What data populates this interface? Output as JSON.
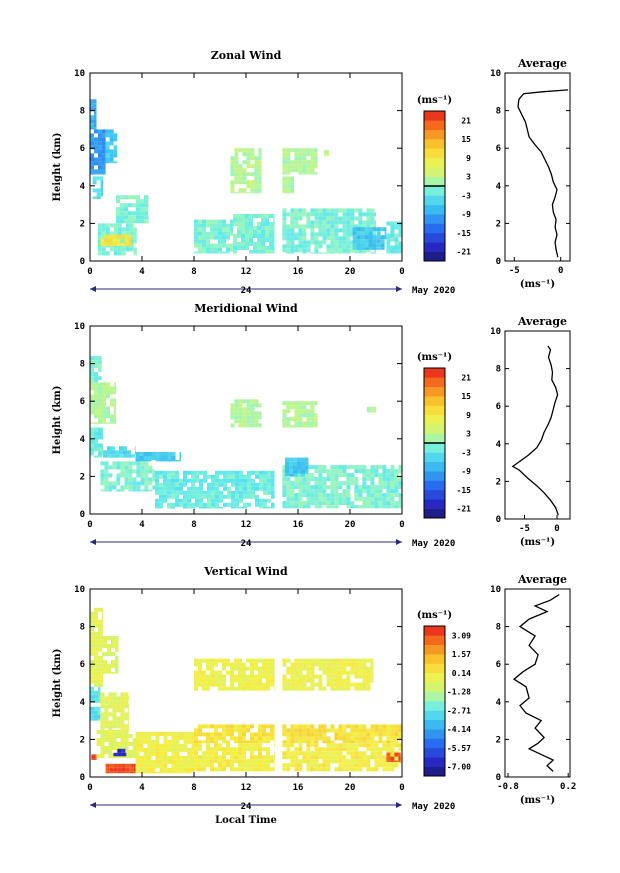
{
  "figure": {
    "date_label": "May 2020",
    "midnight_label": "24",
    "x_axis_label": "Local Time",
    "unit_label": "(ms⁻¹)",
    "y_axis_label": "Height (km)",
    "average_title": "Average"
  },
  "chart_data": [
    {
      "type": "heatmap",
      "title": "Zonal Wind",
      "xlabel": "",
      "ylabel": "Height (km)",
      "x_ticks": [
        "0",
        "4",
        "8",
        "12",
        "16",
        "20",
        "0"
      ],
      "y_ticks": [
        "0",
        "2",
        "4",
        "6",
        "8",
        "10"
      ],
      "xlim": [
        0,
        24
      ],
      "ylim": [
        0,
        10
      ],
      "colorbar": {
        "unit": "(ms⁻¹)",
        "labels": [
          "21",
          "15",
          "9",
          "3",
          "-3",
          "-9",
          "-15",
          "-21"
        ],
        "range": [
          -24,
          24
        ],
        "contour_at": 0
      },
      "blocks": [
        {
          "x": [
            0,
            1.2
          ],
          "y": [
            4.6,
            7.0
          ],
          "v": -10
        },
        {
          "x": [
            0,
            0.5
          ],
          "y": [
            7.0,
            8.6
          ],
          "v": -8
        },
        {
          "x": [
            1.2,
            2.1
          ],
          "y": [
            5.2,
            7.0
          ],
          "v": -6
        },
        {
          "x": [
            0.2,
            1.0
          ],
          "y": [
            3.3,
            4.5
          ],
          "v": -4
        },
        {
          "x": [
            2.0,
            4.5
          ],
          "y": [
            2.0,
            3.5
          ],
          "v": -1
        },
        {
          "x": [
            0.6,
            3.6
          ],
          "y": [
            0.3,
            2.0
          ],
          "v": -1
        },
        {
          "x": [
            0.8,
            3.2
          ],
          "y": [
            0.8,
            1.4
          ],
          "v": 10
        },
        {
          "x": [
            8.0,
            11.0
          ],
          "y": [
            0.4,
            2.2
          ],
          "v": -1
        },
        {
          "x": [
            11.0,
            14.2
          ],
          "y": [
            0.4,
            2.5
          ],
          "v": -1
        },
        {
          "x": [
            14.8,
            22.0
          ],
          "y": [
            0.4,
            2.8
          ],
          "v": -1
        },
        {
          "x": [
            20.2,
            22.8
          ],
          "y": [
            0.6,
            1.8
          ],
          "v": -6
        },
        {
          "x": [
            22.8,
            24.0
          ],
          "y": [
            0.4,
            2.1
          ],
          "v": -2
        },
        {
          "x": [
            10.8,
            13.2
          ],
          "y": [
            3.6,
            6.0
          ],
          "v": 2
        },
        {
          "x": [
            14.8,
            17.5
          ],
          "y": [
            4.6,
            6.0
          ],
          "v": 2
        },
        {
          "x": [
            18.0,
            18.4
          ],
          "y": [
            5.6,
            5.9
          ],
          "v": 2
        },
        {
          "x": [
            14.8,
            15.7
          ],
          "y": [
            3.6,
            4.5
          ],
          "v": 2
        }
      ],
      "average": {
        "title": "Average",
        "xlim": [
          -6,
          1
        ],
        "x_ticks": [
          {
            "v": -5,
            "t": "-5"
          },
          {
            "v": 0,
            "t": "0"
          }
        ],
        "x_unit": "(ms⁻¹)",
        "ylim": [
          0,
          10
        ],
        "y_ticks": [
          "0",
          "2",
          "4",
          "6",
          "8",
          "10"
        ],
        "profile": [
          {
            "h": 0.2,
            "v": -0.3
          },
          {
            "h": 0.6,
            "v": -0.5
          },
          {
            "h": 1.0,
            "v": -0.6
          },
          {
            "h": 1.4,
            "v": -0.4
          },
          {
            "h": 1.8,
            "v": -0.6
          },
          {
            "h": 2.2,
            "v": -0.5
          },
          {
            "h": 2.6,
            "v": -0.8
          },
          {
            "h": 3.0,
            "v": -0.9
          },
          {
            "h": 3.4,
            "v": -0.6
          },
          {
            "h": 3.8,
            "v": -0.4
          },
          {
            "h": 4.2,
            "v": -0.8
          },
          {
            "h": 4.6,
            "v": -1.0
          },
          {
            "h": 5.0,
            "v": -1.3
          },
          {
            "h": 5.4,
            "v": -1.7
          },
          {
            "h": 5.8,
            "v": -2.1
          },
          {
            "h": 6.2,
            "v": -2.8
          },
          {
            "h": 6.6,
            "v": -3.4
          },
          {
            "h": 7.0,
            "v": -3.6
          },
          {
            "h": 7.4,
            "v": -3.8
          },
          {
            "h": 7.8,
            "v": -4.2
          },
          {
            "h": 8.2,
            "v": -4.6
          },
          {
            "h": 8.6,
            "v": -4.5
          },
          {
            "h": 8.9,
            "v": -4.0
          },
          {
            "h": 9.0,
            "v": -2.0
          },
          {
            "h": 9.1,
            "v": 0.8
          }
        ]
      }
    },
    {
      "type": "heatmap",
      "title": "Meridional Wind",
      "xlabel": "",
      "ylabel": "Height (km)",
      "x_ticks": [
        "0",
        "4",
        "8",
        "12",
        "16",
        "20",
        "0"
      ],
      "y_ticks": [
        "0",
        "2",
        "4",
        "6",
        "8",
        "10"
      ],
      "xlim": [
        0,
        24
      ],
      "ylim": [
        0,
        10
      ],
      "colorbar": {
        "unit": "(ms⁻¹)",
        "labels": [
          "21",
          "15",
          "9",
          "3",
          "-3",
          "-9",
          "-15",
          "-21"
        ],
        "range": [
          -24,
          24
        ],
        "contour_at": 0
      },
      "blocks": [
        {
          "x": [
            0,
            2.0
          ],
          "y": [
            4.8,
            7.0
          ],
          "v": 2
        },
        {
          "x": [
            0,
            0.9
          ],
          "y": [
            7.0,
            8.4
          ],
          "v": -1
        },
        {
          "x": [
            0,
            1.0
          ],
          "y": [
            3.0,
            4.6
          ],
          "v": -2
        },
        {
          "x": [
            1.0,
            3.5
          ],
          "y": [
            3.0,
            3.6
          ],
          "v": -4
        },
        {
          "x": [
            3.5,
            7.0
          ],
          "y": [
            2.8,
            3.3
          ],
          "v": -6
        },
        {
          "x": [
            0.8,
            5.0
          ],
          "y": [
            1.2,
            2.8
          ],
          "v": -1
        },
        {
          "x": [
            5.0,
            14.2
          ],
          "y": [
            0.3,
            2.3
          ],
          "v": -2
        },
        {
          "x": [
            14.8,
            24.0
          ],
          "y": [
            0.3,
            2.6
          ],
          "v": -1
        },
        {
          "x": [
            15.0,
            16.8
          ],
          "y": [
            2.0,
            3.0
          ],
          "v": -6
        },
        {
          "x": [
            10.8,
            13.2
          ],
          "y": [
            4.6,
            6.1
          ],
          "v": 2
        },
        {
          "x": [
            14.8,
            17.5
          ],
          "y": [
            4.6,
            6.0
          ],
          "v": 2
        },
        {
          "x": [
            21.3,
            22.0
          ],
          "y": [
            5.4,
            5.7
          ],
          "v": 2
        }
      ],
      "average": {
        "title": "Average",
        "xlim": [
          -8,
          2
        ],
        "x_ticks": [
          {
            "v": -5,
            "t": "-5"
          },
          {
            "v": 0,
            "t": "0"
          }
        ],
        "x_unit": "(ms⁻¹)",
        "ylim": [
          0,
          10
        ],
        "y_ticks": [
          "0",
          "2",
          "4",
          "6",
          "8",
          "10"
        ],
        "profile": [
          {
            "h": 0.2,
            "v": 0.2
          },
          {
            "h": 0.6,
            "v": -0.2
          },
          {
            "h": 1.0,
            "v": -1.0
          },
          {
            "h": 1.4,
            "v": -2.0
          },
          {
            "h": 1.8,
            "v": -3.2
          },
          {
            "h": 2.2,
            "v": -4.6
          },
          {
            "h": 2.6,
            "v": -5.8
          },
          {
            "h": 2.8,
            "v": -6.8
          },
          {
            "h": 3.0,
            "v": -6.0
          },
          {
            "h": 3.4,
            "v": -4.4
          },
          {
            "h": 3.8,
            "v": -3.1
          },
          {
            "h": 4.2,
            "v": -2.4
          },
          {
            "h": 4.6,
            "v": -2.0
          },
          {
            "h": 5.0,
            "v": -1.4
          },
          {
            "h": 5.4,
            "v": -0.9
          },
          {
            "h": 5.8,
            "v": -0.6
          },
          {
            "h": 6.2,
            "v": -0.3
          },
          {
            "h": 6.6,
            "v": 0.1
          },
          {
            "h": 7.0,
            "v": -0.2
          },
          {
            "h": 7.4,
            "v": -0.8
          },
          {
            "h": 7.8,
            "v": -0.7
          },
          {
            "h": 8.2,
            "v": -0.9
          },
          {
            "h": 8.6,
            "v": -1.3
          },
          {
            "h": 9.0,
            "v": -1.0
          },
          {
            "h": 9.2,
            "v": -1.4
          }
        ]
      }
    },
    {
      "type": "heatmap",
      "title": "Vertical Wind",
      "xlabel": "Local Time",
      "ylabel": "Height (km)",
      "x_ticks": [
        "0",
        "4",
        "8",
        "12",
        "16",
        "20",
        "0"
      ],
      "y_ticks": [
        "0",
        "2",
        "4",
        "6",
        "8",
        "10"
      ],
      "xlim": [
        0,
        24
      ],
      "ylim": [
        0,
        10
      ],
      "colorbar": {
        "unit": "(ms⁻¹)",
        "labels": [
          "3.09",
          "1.57",
          "0.14",
          "-1.28",
          "-2.71",
          "-4.14",
          "-5.57",
          "-7.00"
        ],
        "range": [
          -7.71,
          3.8
        ],
        "contour_at": null
      },
      "blocks": [
        {
          "x": [
            0,
            1.0
          ],
          "y": [
            4.8,
            9.0
          ],
          "v": -0.4
        },
        {
          "x": [
            1.0,
            2.2
          ],
          "y": [
            5.5,
            7.5
          ],
          "v": -0.6
        },
        {
          "x": [
            0,
            0.8
          ],
          "y": [
            3.0,
            4.8
          ],
          "v": -2.8
        },
        {
          "x": [
            0.8,
            3.0
          ],
          "y": [
            2.5,
            4.5
          ],
          "v": -0.5
        },
        {
          "x": [
            0.5,
            3.5
          ],
          "y": [
            1.0,
            2.5
          ],
          "v": -0.4
        },
        {
          "x": [
            3.5,
            8.0
          ],
          "y": [
            0.2,
            2.4
          ],
          "v": 0.0
        },
        {
          "x": [
            8.0,
            14.2
          ],
          "y": [
            1.8,
            2.8
          ],
          "v": 0.4
        },
        {
          "x": [
            8.0,
            14.2
          ],
          "y": [
            0.3,
            1.8
          ],
          "v": 0.1
        },
        {
          "x": [
            14.8,
            24.0
          ],
          "y": [
            1.8,
            2.8
          ],
          "v": 0.5
        },
        {
          "x": [
            14.8,
            24.0
          ],
          "y": [
            0.3,
            1.8
          ],
          "v": 0.1
        },
        {
          "x": [
            8.0,
            14.2
          ],
          "y": [
            4.6,
            6.3
          ],
          "v": -0.1
        },
        {
          "x": [
            14.8,
            21.8
          ],
          "y": [
            4.6,
            6.3
          ],
          "v": -0.1
        },
        {
          "x": [
            1.8,
            2.8
          ],
          "y": [
            1.1,
            1.5
          ],
          "v": -6.6
        },
        {
          "x": [
            0.1,
            0.5
          ],
          "y": [
            0.9,
            1.2
          ],
          "v": 3.4
        },
        {
          "x": [
            1.2,
            3.5
          ],
          "y": [
            0.2,
            0.7
          ],
          "v": 3.2
        },
        {
          "x": [
            22.8,
            23.9
          ],
          "y": [
            0.8,
            1.3
          ],
          "v": 3.1
        }
      ],
      "average": {
        "title": "Average",
        "xlim": [
          -0.85,
          0.23
        ],
        "x_ticks": [
          {
            "v": -0.8,
            "t": "-0.8"
          },
          {
            "v": 0.2,
            "t": "0.2"
          }
        ],
        "x_unit": "(ms⁻¹)",
        "ylim": [
          0,
          10
        ],
        "y_ticks": [
          "0",
          "2",
          "4",
          "6",
          "8",
          "10"
        ],
        "profile": [
          {
            "h": 0.3,
            "v": -0.05
          },
          {
            "h": 0.6,
            "v": -0.15
          },
          {
            "h": 0.9,
            "v": -0.05
          },
          {
            "h": 1.2,
            "v": -0.25
          },
          {
            "h": 1.5,
            "v": -0.45
          },
          {
            "h": 1.8,
            "v": -0.3
          },
          {
            "h": 2.1,
            "v": -0.2
          },
          {
            "h": 2.6,
            "v": -0.35
          },
          {
            "h": 3.0,
            "v": -0.25
          },
          {
            "h": 3.4,
            "v": -0.5
          },
          {
            "h": 3.8,
            "v": -0.6
          },
          {
            "h": 4.2,
            "v": -0.45
          },
          {
            "h": 4.8,
            "v": -0.5
          },
          {
            "h": 5.2,
            "v": -0.7
          },
          {
            "h": 5.6,
            "v": -0.55
          },
          {
            "h": 6.0,
            "v": -0.35
          },
          {
            "h": 6.5,
            "v": -0.3
          },
          {
            "h": 7.0,
            "v": -0.45
          },
          {
            "h": 7.5,
            "v": -0.35
          },
          {
            "h": 8.0,
            "v": -0.6
          },
          {
            "h": 8.4,
            "v": -0.45
          },
          {
            "h": 8.8,
            "v": -0.15
          },
          {
            "h": 9.1,
            "v": -0.35
          },
          {
            "h": 9.4,
            "v": -0.1
          },
          {
            "h": 9.7,
            "v": 0.05
          }
        ]
      }
    }
  ]
}
